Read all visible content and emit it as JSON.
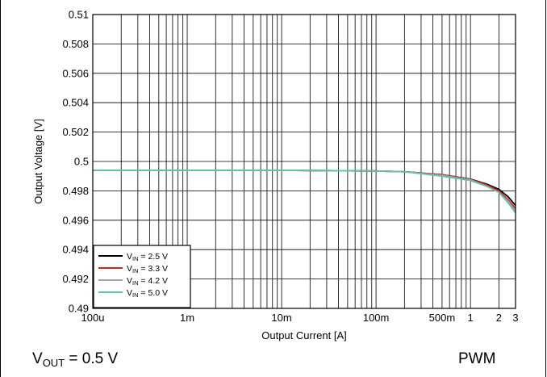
{
  "chart_data": {
    "type": "line",
    "xscale": "log",
    "xlim": [
      0.0001,
      3
    ],
    "ylim": [
      0.49,
      0.51
    ],
    "xlabel": "Output Current [A]",
    "ylabel": "Output Voltage [V]",
    "grid": true,
    "legend_position": "bottom-left",
    "x_ticks": [
      {
        "value": 0.0001,
        "label": "100u"
      },
      {
        "value": 0.001,
        "label": "1m"
      },
      {
        "value": 0.01,
        "label": "10m"
      },
      {
        "value": 0.1,
        "label": "100m"
      },
      {
        "value": 0.5,
        "label": "500m"
      },
      {
        "value": 1,
        "label": "1"
      },
      {
        "value": 2,
        "label": "2"
      },
      {
        "value": 3,
        "label": "3"
      }
    ],
    "y_ticks": [
      {
        "value": 0.51,
        "label": "0.51"
      },
      {
        "value": 0.508,
        "label": "0.508"
      },
      {
        "value": 0.506,
        "label": "0.506"
      },
      {
        "value": 0.504,
        "label": "0.504"
      },
      {
        "value": 0.502,
        "label": "0.502"
      },
      {
        "value": 0.5,
        "label": "0.5"
      },
      {
        "value": 0.498,
        "label": "0.498"
      },
      {
        "value": 0.496,
        "label": "0.496"
      },
      {
        "value": 0.494,
        "label": "0.494"
      },
      {
        "value": 0.492,
        "label": "0.492"
      },
      {
        "value": 0.49,
        "label": "0.49"
      }
    ],
    "series": [
      {
        "name_main": "V",
        "name_sub": "IN",
        "name_rest": " = 2.5 V",
        "color": "#000000",
        "x": [
          0.0001,
          0.001,
          0.01,
          0.1,
          0.2,
          0.5,
          1,
          1.5,
          2,
          2.5,
          3
        ],
        "y": [
          0.4994,
          0.4994,
          0.4994,
          0.49935,
          0.4993,
          0.4991,
          0.4988,
          0.49845,
          0.4981,
          0.4976,
          0.497
        ]
      },
      {
        "name_main": "V",
        "name_sub": "IN",
        "name_rest": " = 3.3 V",
        "color": "#d62020",
        "x": [
          0.0001,
          0.001,
          0.01,
          0.1,
          0.2,
          0.5,
          1,
          1.5,
          2,
          2.5,
          3
        ],
        "y": [
          0.4994,
          0.4994,
          0.4994,
          0.49935,
          0.4993,
          0.4991,
          0.49878,
          0.4984,
          0.498,
          0.4974,
          0.4968
        ]
      },
      {
        "name_main": "V",
        "name_sub": "IN",
        "name_rest": " = 4.2 V",
        "color": "#a0a0a8",
        "x": [
          0.0001,
          0.001,
          0.01,
          0.1,
          0.2,
          0.5,
          1,
          1.5,
          2,
          2.5,
          3
        ],
        "y": [
          0.4994,
          0.4994,
          0.4994,
          0.49935,
          0.4993,
          0.49905,
          0.49875,
          0.4983,
          0.4979,
          0.4973,
          0.4966
        ]
      },
      {
        "name_main": "V",
        "name_sub": "IN",
        "name_rest": " = 5.0 V",
        "color": "#5ec4a6",
        "x": [
          0.0001,
          0.001,
          0.01,
          0.1,
          0.2,
          0.5,
          1,
          1.5,
          2,
          2.5,
          3
        ],
        "y": [
          0.4994,
          0.4994,
          0.4994,
          0.49935,
          0.4993,
          0.499,
          0.4987,
          0.4983,
          0.4979,
          0.4972,
          0.4965
        ]
      }
    ]
  },
  "footer": {
    "left_main": "V",
    "left_sub": "OUT",
    "left_rest": " = 0.5 V",
    "right": "PWM"
  }
}
